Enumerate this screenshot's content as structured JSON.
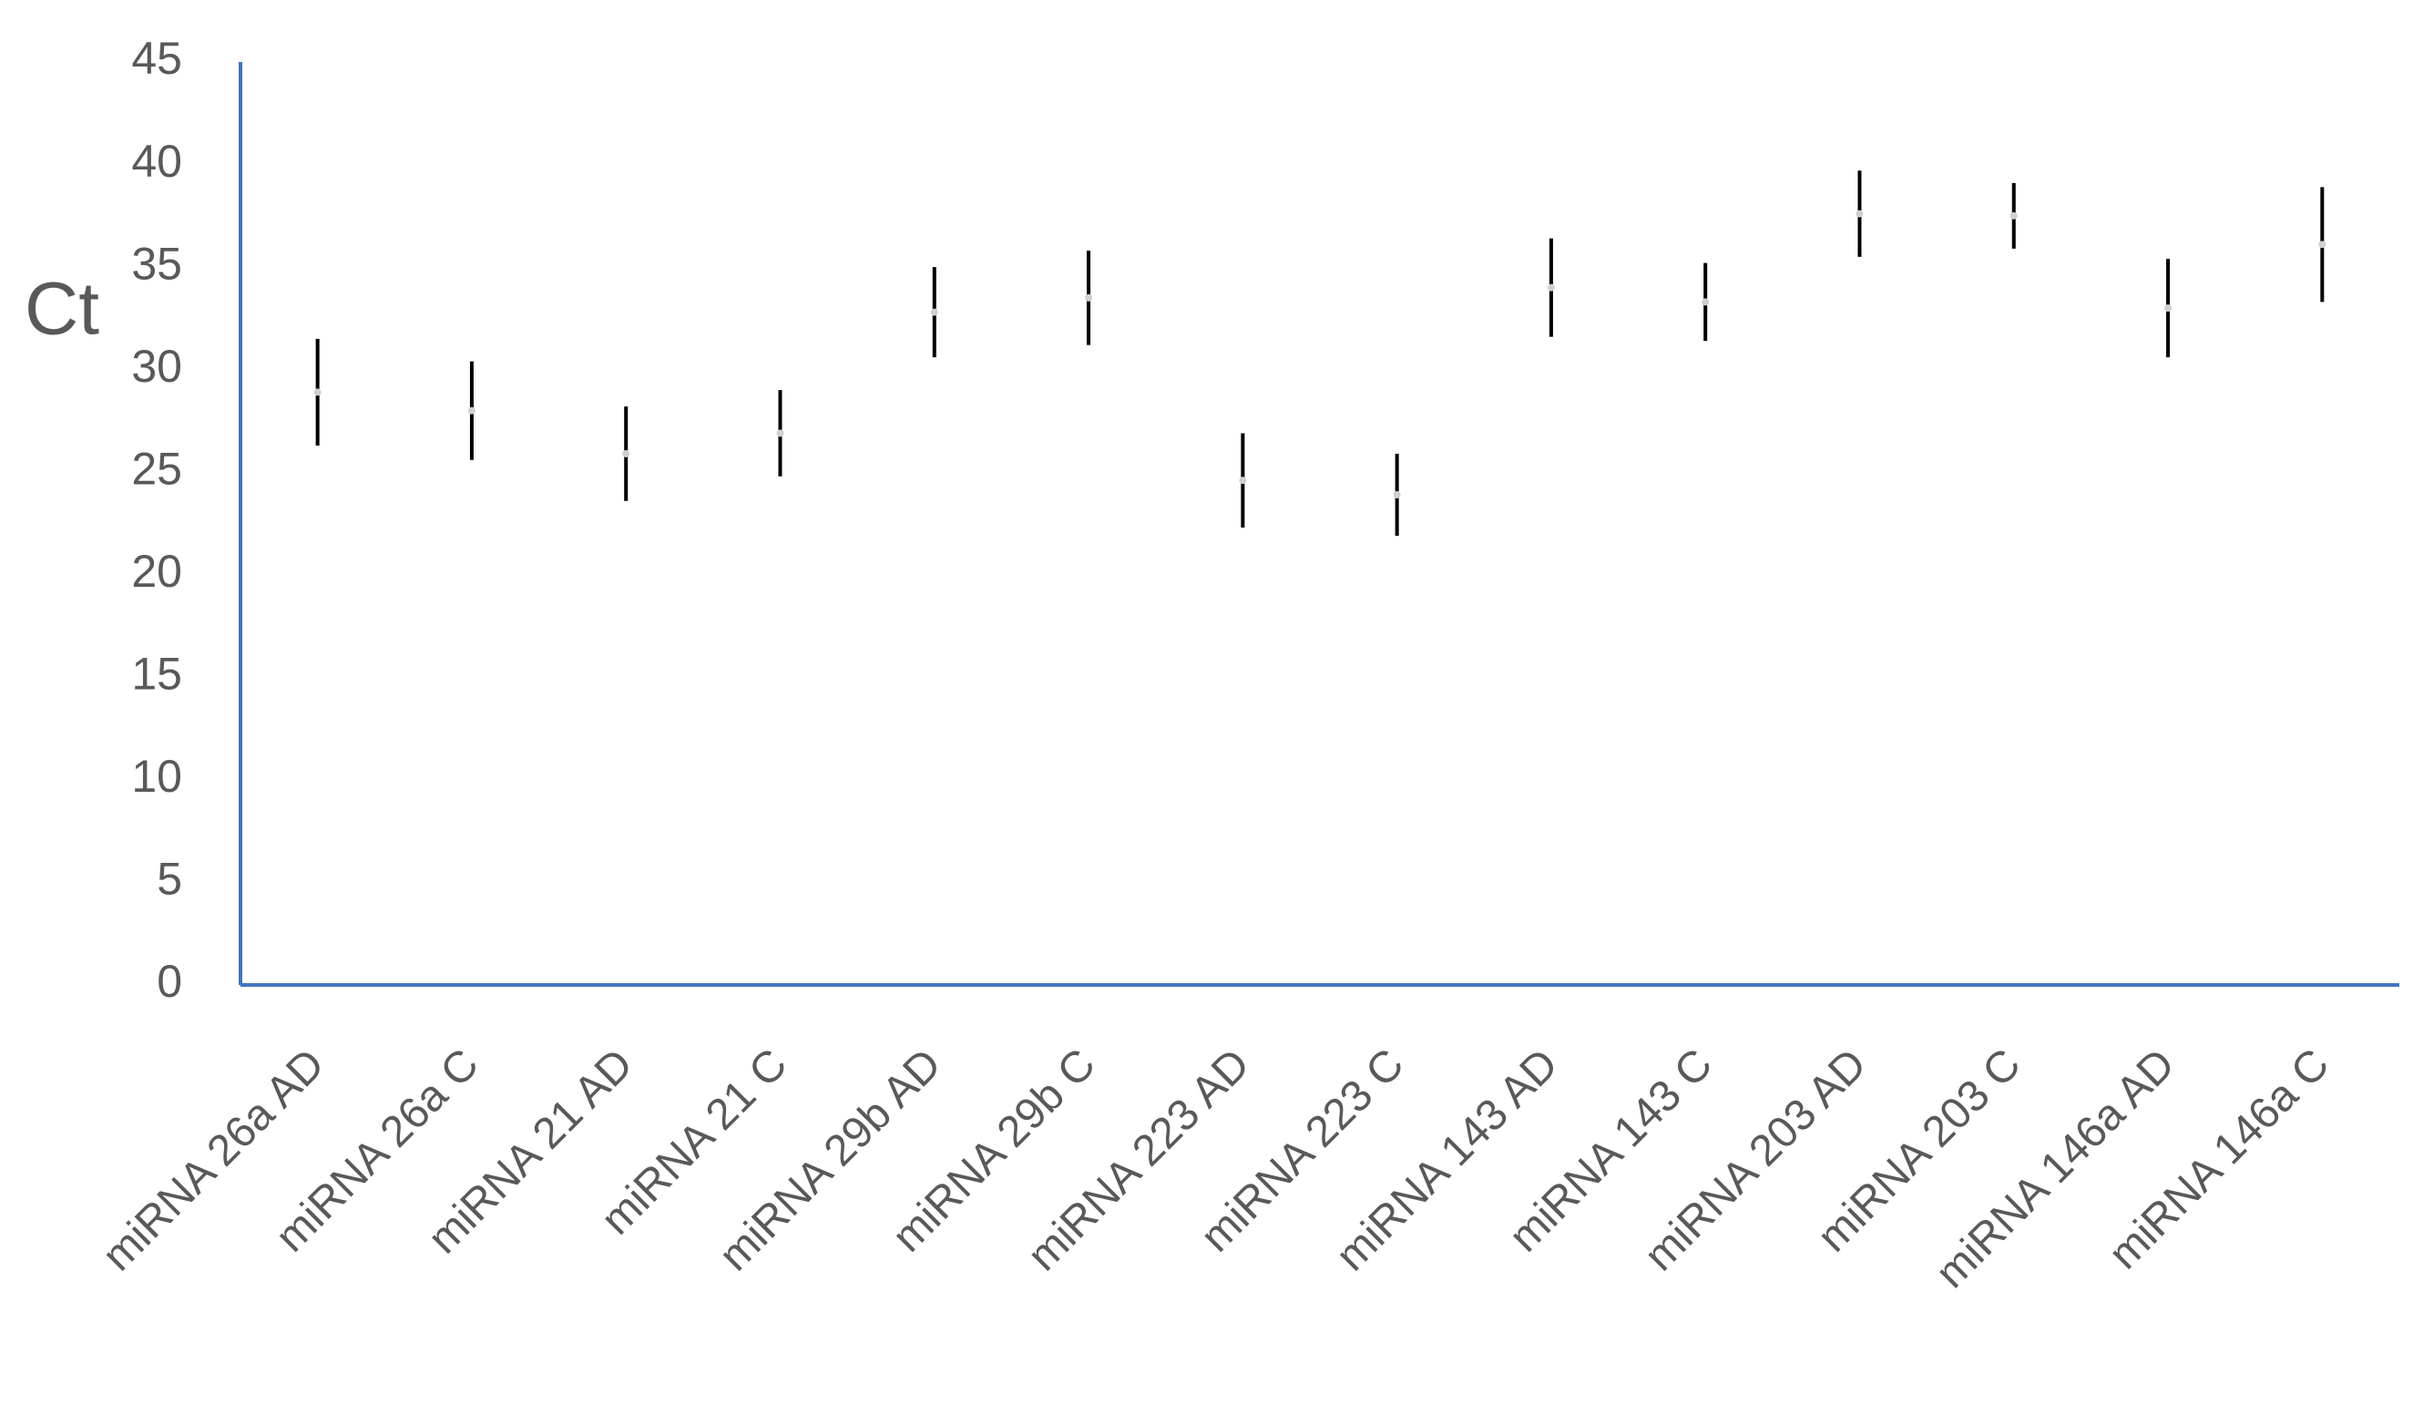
{
  "chart_data": {
    "type": "errorbar",
    "y_label": "Ct",
    "categories": [
      "miRNA 26a AD",
      "miRNA 26a C",
      "miRNA 21 AD",
      "miRNA 21 C",
      "miRNA 29b AD",
      "miRNA 29b C",
      "miRNA 223 AD",
      "miRNA 223 C",
      "miRNA 143 AD",
      "miRNA 143 C",
      "miRNA 203 AD",
      "miRNA 203 C",
      "miRNA 146a AD",
      "miRNA 146a C"
    ],
    "values": [
      28.9,
      28,
      25.9,
      26.9,
      32.8,
      33.5,
      24.6,
      23.9,
      34,
      33.3,
      37.6,
      37.5,
      33,
      36.1
    ],
    "errors": [
      2.6,
      2.4,
      2.3,
      2.1,
      2.2,
      2.3,
      2.3,
      2.0,
      2.4,
      1.9,
      2.1,
      1.6,
      2.4,
      2.8
    ],
    "color": "#000000",
    "axis_color": "#4472c4",
    "ylim": [
      0,
      45
    ],
    "yticks": [
      0,
      5,
      10,
      15,
      20,
      25,
      30,
      35,
      40,
      45
    ],
    "grid": false
  }
}
